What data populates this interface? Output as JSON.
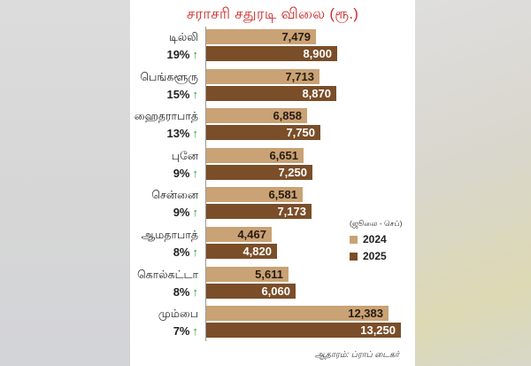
{
  "title": "சராசரி சதுரடி விலை (ரூ.)",
  "legend": {
    "note": "(ஜூலை - செப்)",
    "items": [
      {
        "label": "2024",
        "color": "#c9a275"
      },
      {
        "label": "2025",
        "color": "#7a4e29"
      }
    ]
  },
  "source": "ஆதாரம்: ப்ராப் டைகர்",
  "rows": [
    {
      "city": "டில்லி",
      "change": "19%",
      "v2024": "7,479",
      "v2025": "8,900"
    },
    {
      "city": "பெங்களூரு",
      "change": "15%",
      "v2024": "7,713",
      "v2025": "8,870"
    },
    {
      "city": "ஹைதராபாத்",
      "change": "13%",
      "v2024": "6,858",
      "v2025": "7,750"
    },
    {
      "city": "புனே",
      "change": "9%",
      "v2024": "6,651",
      "v2025": "7,250"
    },
    {
      "city": "சென்னை",
      "change": "9%",
      "v2024": "6,581",
      "v2025": "7,173"
    },
    {
      "city": "ஆமதாபாத்",
      "change": "8%",
      "v2024": "4,467",
      "v2025": "4,820"
    },
    {
      "city": "கொல்கட்டா",
      "change": "8%",
      "v2024": "5,611",
      "v2025": "6,060"
    },
    {
      "city": "மும்பை",
      "change": "7%",
      "v2024": "12,383",
      "v2025": "13,250"
    }
  ],
  "arrow_icon": "↑",
  "colors": {
    "title": "#cf2b2b",
    "arrow": "#2f9c47",
    "bar2024": "#c9a275",
    "bar2025": "#7a4e29"
  },
  "chart_data": {
    "type": "bar",
    "orientation": "horizontal",
    "title": "சராசரி சதுரடி விலை (ரூ.)",
    "subtitle": "(ஜூலை - செப்)",
    "categories": [
      "டில்லி",
      "பெங்களூரு",
      "ஹைதராபாத்",
      "புனே",
      "சென்னை",
      "ஆமதாபாத்",
      "கொல்கட்டா",
      "மும்பை"
    ],
    "series": [
      {
        "name": "2024",
        "values": [
          7479,
          7713,
          6858,
          6651,
          6581,
          4467,
          5611,
          12383
        ]
      },
      {
        "name": "2025",
        "values": [
          8900,
          8870,
          7750,
          7250,
          7173,
          4820,
          6060,
          13250
        ]
      }
    ],
    "annotations": {
      "growth_pct": [
        19,
        15,
        13,
        9,
        9,
        8,
        8,
        7
      ]
    },
    "xlabel": "",
    "ylabel": "",
    "xlim": [
      0,
      13250
    ],
    "grid": false,
    "legend_position": "right",
    "source": "ஆதாரம்: ப்ராப் டைகர்"
  }
}
